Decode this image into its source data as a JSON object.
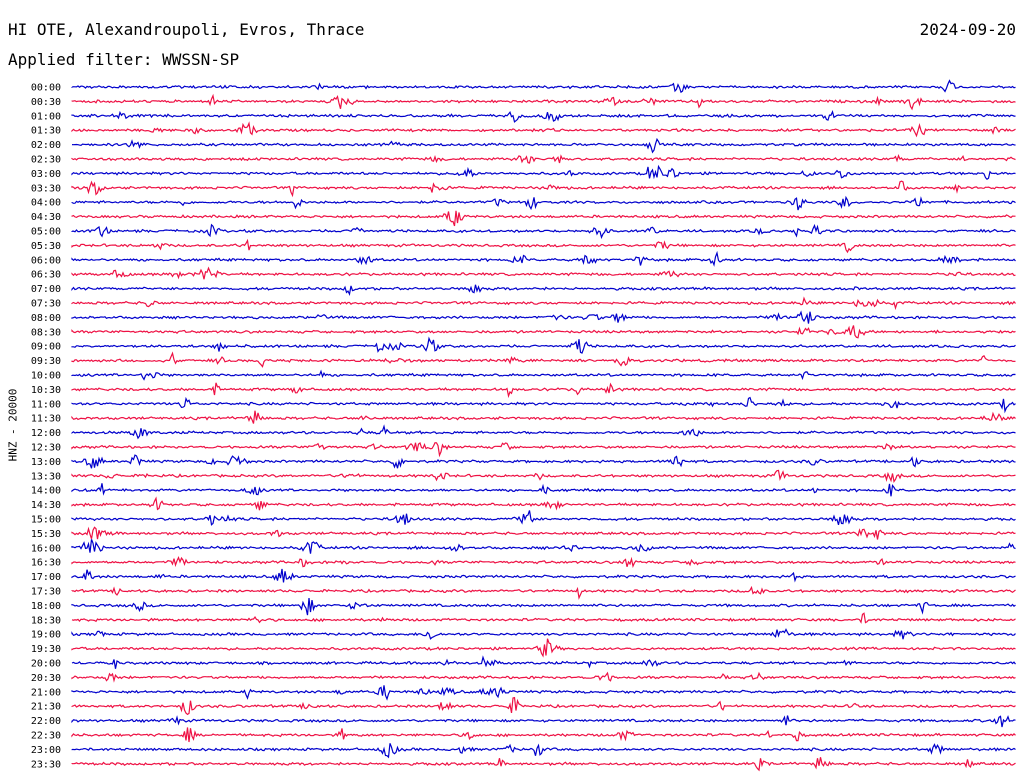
{
  "header": {
    "station": "HI OTE, Alexandroupoli, Evros, Thrace",
    "filter": "Applied filter: WWSSN-SP",
    "date": "2024-09-20"
  },
  "colors": {
    "even_row": "#0000cc",
    "odd_row": "#ee1144"
  },
  "chart_data": {
    "type": "helicorder",
    "title": "HI OTE, Alexandroupoli, Evros, Thrace",
    "date": "2024-09-20",
    "filter": "WWSSN-SP",
    "ylabel": "HNZ - 20000",
    "row_interval_minutes": 30,
    "row_labels": [
      "00:00",
      "00:30",
      "01:00",
      "01:30",
      "02:00",
      "02:30",
      "03:00",
      "03:30",
      "04:00",
      "04:30",
      "05:00",
      "05:30",
      "06:00",
      "06:30",
      "07:00",
      "07:30",
      "08:00",
      "08:30",
      "09:00",
      "09:30",
      "10:00",
      "10:30",
      "11:00",
      "11:30",
      "12:00",
      "12:30",
      "13:00",
      "13:30",
      "14:00",
      "14:30",
      "15:00",
      "15:30",
      "16:00",
      "16:30",
      "17:00",
      "17:30",
      "18:00",
      "18:30",
      "19:00",
      "19:30",
      "20:00",
      "20:30",
      "21:00",
      "21:30",
      "22:00",
      "22:30",
      "23:00",
      "23:30"
    ],
    "series_colors": [
      "#0000cc",
      "#ee1144"
    ]
  }
}
